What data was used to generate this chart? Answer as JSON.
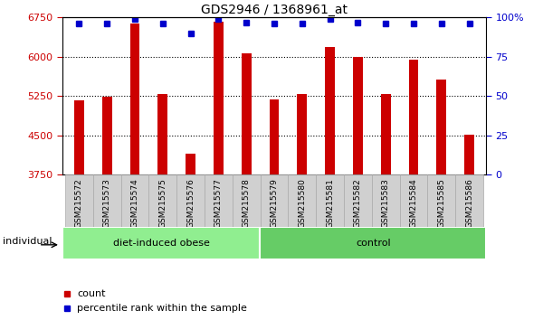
{
  "title": "GDS2946 / 1368961_at",
  "categories": [
    "GSM215572",
    "GSM215573",
    "GSM215574",
    "GSM215575",
    "GSM215576",
    "GSM215577",
    "GSM215578",
    "GSM215579",
    "GSM215580",
    "GSM215581",
    "GSM215582",
    "GSM215583",
    "GSM215584",
    "GSM215585",
    "GSM215586"
  ],
  "bar_values": [
    5170,
    5240,
    6640,
    5290,
    4150,
    6680,
    6060,
    5190,
    5280,
    6190,
    5990,
    5290,
    5940,
    5560,
    4510
  ],
  "percentile_values": [
    96,
    96,
    99,
    96,
    90,
    99,
    97,
    96,
    96,
    99,
    97,
    96,
    96,
    96,
    96
  ],
  "bar_color": "#cc0000",
  "percentile_color": "#0000cc",
  "ylim_left": [
    3750,
    6750
  ],
  "ylim_right": [
    0,
    100
  ],
  "yticks_left": [
    3750,
    4500,
    5250,
    6000,
    6750
  ],
  "yticks_right": [
    0,
    25,
    50,
    75,
    100
  ],
  "ytick_labels_right": [
    "0",
    "25",
    "50",
    "75",
    "100%"
  ],
  "group1_label": "diet-induced obese",
  "group2_label": "control",
  "group1_count": 7,
  "group2_count": 8,
  "group1_color": "#90ee90",
  "group2_color": "#66cc66",
  "individual_label": "individual",
  "legend_count_label": "count",
  "legend_percentile_label": "percentile rank within the sample",
  "xticklabel_bg": "#d0d0d0",
  "plot_bg": "#ffffff",
  "bar_width": 0.35,
  "title_fontsize": 10,
  "tick_fontsize": 8,
  "label_fontsize": 8
}
